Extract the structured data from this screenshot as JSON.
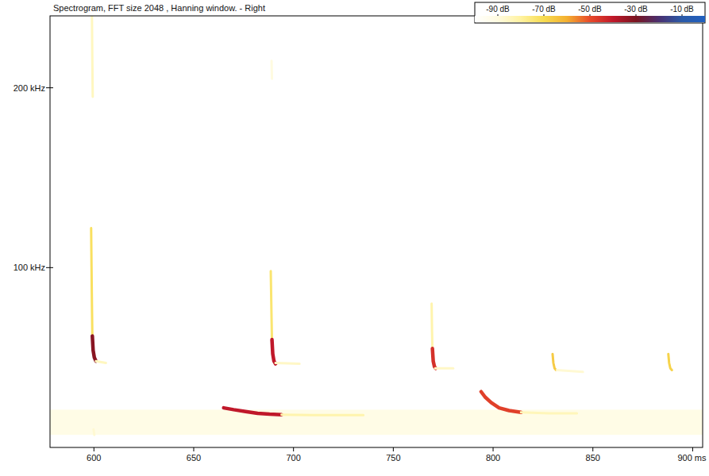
{
  "chart_data": {
    "type": "spectrogram",
    "title": "Spectrogram, FFT size 2048 , Hanning window. - Right",
    "xlim": [
      578,
      905
    ],
    "xticks": [
      600,
      650,
      700,
      750,
      800,
      850,
      {
        "value": 900,
        "label": "900 ms"
      }
    ],
    "ylim": [
      0,
      240
    ],
    "yticks": [
      {
        "value": 100,
        "label": "100 kHz"
      },
      {
        "value": 200,
        "label": "200 kHz"
      }
    ],
    "colorbar": {
      "range": [
        -100,
        0
      ],
      "ticks": [
        {
          "value": -90,
          "label": "-90 dB"
        },
        {
          "value": -70,
          "label": "-70 dB"
        },
        {
          "value": -50,
          "label": "-50 dB"
        },
        {
          "value": -30,
          "label": "-30 dB"
        },
        {
          "value": -10,
          "label": "-10 dB"
        }
      ]
    },
    "traces": [
      {
        "type": "band",
        "x": [
          578,
          905
        ],
        "values": [
          7,
          21
        ],
        "level": -92
      },
      {
        "type": "line",
        "x": [
          599.0,
          599.2,
          599.4
        ],
        "values": [
          240,
          215,
          195
        ],
        "level": -85
      },
      {
        "type": "line",
        "x": [
          598.6,
          598.8,
          599.0,
          599.2
        ],
        "values": [
          122,
          100,
          80,
          62
        ],
        "level": -72
      },
      {
        "type": "line",
        "x": [
          599.2,
          599.6,
          600.2,
          601.0
        ],
        "values": [
          62,
          54,
          50,
          48
        ],
        "level": -32
      },
      {
        "type": "line",
        "x": [
          601,
          606
        ],
        "values": [
          48,
          47
        ],
        "level": -85
      },
      {
        "type": "line",
        "x": [
          689.0,
          689.2
        ],
        "values": [
          215,
          205
        ],
        "level": -90
      },
      {
        "type": "line",
        "x": [
          688.6,
          688.8,
          689.0,
          689.2
        ],
        "values": [
          98,
          85,
          72,
          60
        ],
        "level": -74
      },
      {
        "type": "line",
        "x": [
          689.2,
          689.6,
          690.2,
          691.0
        ],
        "values": [
          60,
          52,
          48,
          46.5
        ],
        "level": -40
      },
      {
        "type": "line",
        "x": [
          691,
          703
        ],
        "values": [
          47,
          46.5
        ],
        "level": -86
      },
      {
        "type": "line",
        "x": [
          769.2,
          769.4,
          769.6
        ],
        "values": [
          80,
          65,
          55
        ],
        "level": -82
      },
      {
        "type": "line",
        "x": [
          769.6,
          770.0,
          770.6,
          771.2
        ],
        "values": [
          55,
          48,
          45,
          44
        ],
        "level": -45
      },
      {
        "type": "line",
        "x": [
          771,
          780
        ],
        "values": [
          44,
          44
        ],
        "level": -86
      },
      {
        "type": "line",
        "x": [
          829.8,
          830.2,
          830.8,
          831.6
        ],
        "values": [
          52,
          47,
          44,
          43
        ],
        "level": -66
      },
      {
        "type": "line",
        "x": [
          832,
          845
        ],
        "values": [
          43,
          42
        ],
        "level": -88
      },
      {
        "type": "line",
        "x": [
          887.8,
          888.2,
          888.8,
          889.6
        ],
        "values": [
          52,
          47,
          44,
          43
        ],
        "level": -68
      },
      {
        "type": "line",
        "x": [
          665,
          670,
          676,
          682,
          688,
          694
        ],
        "values": [
          22,
          21,
          20,
          19,
          18.5,
          18.2
        ],
        "level": -40
      },
      {
        "type": "line",
        "x": [
          694,
          710,
          735
        ],
        "values": [
          18.2,
          18,
          18
        ],
        "level": -82
      },
      {
        "type": "line",
        "x": [
          794,
          796,
          799,
          803,
          808,
          814
        ],
        "values": [
          31,
          28,
          25,
          22,
          20.5,
          19.5
        ],
        "level": -48
      },
      {
        "type": "line",
        "x": [
          814,
          828,
          842
        ],
        "values": [
          19.5,
          19,
          19
        ],
        "level": -84
      },
      {
        "type": "line",
        "x": [
          599.8,
          600.2
        ],
        "values": [
          10,
          7
        ],
        "level": -88
      }
    ]
  }
}
